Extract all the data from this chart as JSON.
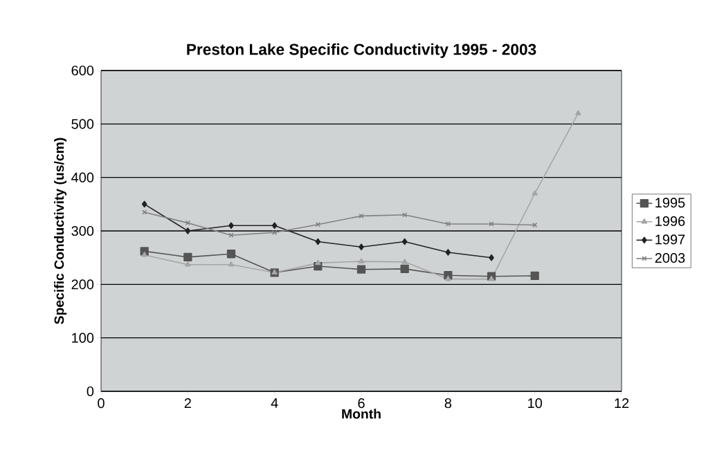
{
  "chart_data": {
    "type": "line",
    "title": "Preston Lake Specific Conductivity 1995 - 2003",
    "xlabel": "Month",
    "ylabel": "Specific Conductivity (us/cm)",
    "xlim": [
      0,
      12
    ],
    "xticks": [
      0,
      2,
      4,
      6,
      8,
      10,
      12
    ],
    "ylim": [
      0,
      600
    ],
    "yticks": [
      0,
      100,
      200,
      300,
      400,
      500,
      600
    ],
    "grid": "y",
    "legend": "right",
    "line_style": "solid",
    "series": [
      {
        "name": "1995",
        "color": "#555555",
        "marker": "square",
        "x": [
          1,
          2,
          3,
          4,
          5,
          6,
          7,
          8,
          9,
          10
        ],
        "values": [
          262,
          251,
          257,
          222,
          234,
          228,
          229,
          217,
          215,
          216
        ]
      },
      {
        "name": "1996",
        "color": "#a6a6a6",
        "marker": "triangle",
        "x": [
          1,
          2,
          3,
          4,
          5,
          6,
          7,
          8,
          9,
          10,
          11
        ],
        "values": [
          255,
          237,
          237,
          222,
          240,
          243,
          242,
          210,
          210,
          370,
          520
        ]
      },
      {
        "name": "1997",
        "color": "#222222",
        "marker": "diamond",
        "x": [
          1,
          2,
          3,
          4,
          5,
          6,
          7,
          8,
          9
        ],
        "values": [
          350,
          300,
          310,
          310,
          280,
          270,
          280,
          260,
          250
        ]
      },
      {
        "name": "2003",
        "color": "#808080",
        "marker": "cross",
        "x": [
          1,
          2,
          3,
          4,
          5,
          6,
          7,
          8,
          9,
          10
        ],
        "values": [
          335,
          315,
          292,
          297,
          312,
          328,
          330,
          313,
          313,
          311
        ]
      }
    ]
  }
}
